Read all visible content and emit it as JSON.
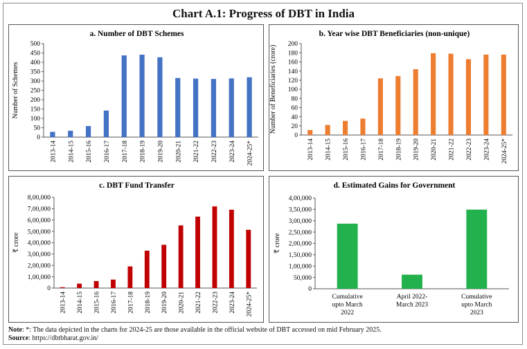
{
  "title": "Chart A.1: Progress of DBT in India",
  "note_label": "Note",
  "note_text": ": *: The data depicted in the charts for 2024-25 are those available in the official website of DBT accessed on mid February 2025.",
  "source_label": "Source",
  "source_text": ": https://dbtbharat.gov.in/",
  "colors": {
    "scheme_blue": "#4472c4",
    "beneficiary_orange": "#ed7d31",
    "fund_red": "#c00000",
    "gains_green": "#22b14c"
  },
  "chart_data": [
    {
      "id": "a",
      "type": "bar",
      "title": "a. Number of DBT Schemes",
      "ylabel": "Number of Schemes",
      "xlabel": "",
      "ylim": [
        0,
        500
      ],
      "yticks": [
        0,
        50,
        100,
        150,
        200,
        250,
        300,
        350,
        400,
        450,
        500
      ],
      "ytick_labels": [
        "0",
        "50",
        "100",
        "150",
        "200",
        "250",
        "300",
        "350",
        "400",
        "450",
        "500"
      ],
      "categories": [
        "2013-14",
        "2014-15",
        "2015-16",
        "2016-17",
        "2017-18",
        "2018-19",
        "2019-20",
        "2020-21",
        "2021-22",
        "2022-23",
        "2023-24",
        "2024-25*"
      ],
      "values": [
        28,
        34,
        59,
        142,
        437,
        441,
        427,
        316,
        313,
        311,
        314,
        320
      ],
      "color": "#4472c4",
      "grid": false
    },
    {
      "id": "b",
      "type": "bar",
      "title": "b. Year wise DBT Beneficiaries (non-unique)",
      "ylabel": "Number of Beneficiaries (crore)",
      "xlabel": "",
      "ylim": [
        0,
        200
      ],
      "yticks": [
        0,
        20,
        40,
        60,
        80,
        100,
        120,
        140,
        160,
        180,
        200
      ],
      "ytick_labels": [
        "0",
        "20",
        "40",
        "60",
        "80",
        "100",
        "120",
        "140",
        "160",
        "180",
        "200"
      ],
      "categories": [
        "2013-14",
        "2014-15",
        "2015-16",
        "2016-17",
        "2017-18",
        "2018-19",
        "2019-20",
        "2020-21",
        "2021-22",
        "2022-23",
        "2023-24",
        "2024-25*"
      ],
      "values": [
        11,
        22,
        31,
        36,
        124,
        129,
        144,
        179,
        178,
        166,
        176,
        176
      ],
      "color": "#ed7d31",
      "grid": false
    },
    {
      "id": "c",
      "type": "bar",
      "title": "c. DBT Fund Transfer",
      "ylabel": "₹ crore",
      "xlabel": "",
      "ylim": [
        0,
        800000
      ],
      "yticks": [
        0,
        100000,
        200000,
        300000,
        400000,
        500000,
        600000,
        700000,
        800000
      ],
      "ytick_labels": [
        "0",
        "1,00,000",
        "2,00,000",
        "3,00,000",
        "4,00,000",
        "5,00,000",
        "6,00,000",
        "7,00,000",
        "8,00,000"
      ],
      "categories": [
        "2013-14",
        "2014-15",
        "2015-16",
        "2016-17",
        "2017-18",
        "2018-19",
        "2019-20",
        "2020-21",
        "2021-22",
        "2022-23",
        "2023-24",
        "2024-25*"
      ],
      "values": [
        7400,
        38900,
        61900,
        74700,
        190900,
        329800,
        381600,
        552500,
        630300,
        720000,
        691000,
        514000
      ],
      "color": "#c00000",
      "grid": false
    },
    {
      "id": "d",
      "type": "bar",
      "title": "d. Estimated Gains for Government",
      "ylabel": "₹ crore",
      "xlabel": "",
      "ylim": [
        0,
        400000
      ],
      "yticks": [
        0,
        50000,
        100000,
        150000,
        200000,
        250000,
        300000,
        350000,
        400000
      ],
      "ytick_labels": [
        "0",
        "50,000",
        "1,00,000",
        "1,50,000",
        "2,00,000",
        "2,50,000",
        "3,00,000",
        "3,50,000",
        "4,00,000"
      ],
      "categories": [
        [
          "Cumulative",
          "upto March",
          "2022"
        ],
        [
          "April 2022-",
          "March 2023"
        ],
        [
          "Cumulative",
          "upto March",
          "2023"
        ]
      ],
      "values": [
        287000,
        62000,
        349000
      ],
      "color": "#22b14c",
      "grid": false
    }
  ]
}
